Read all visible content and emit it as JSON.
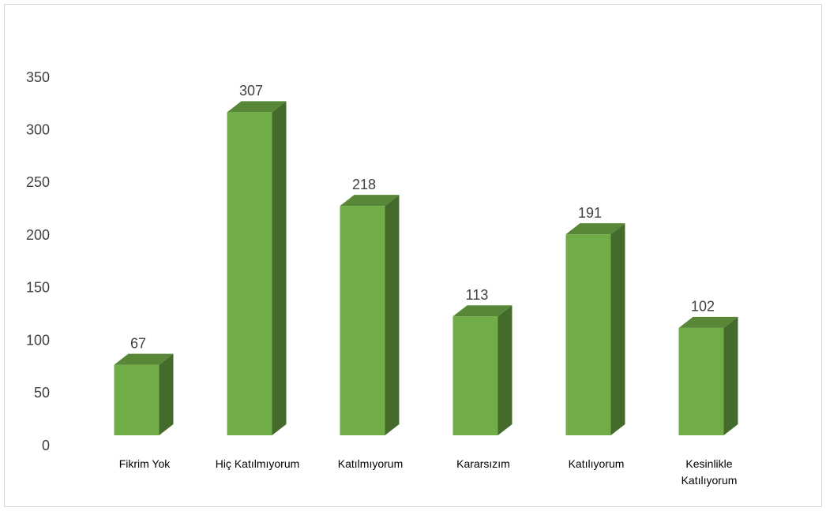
{
  "chart_data": {
    "type": "bar3d",
    "categories": [
      "Fikrim Yok",
      "Hiç Katılmıyorum",
      "Katılmıyorum",
      "Kararsızım",
      "Katılıyorum",
      "Kesinlikle Katılıyorum"
    ],
    "values": [
      67,
      307,
      218,
      113,
      191,
      102
    ],
    "color": "#70ad47",
    "ylim": [
      0,
      350
    ],
    "yticks": [
      0,
      50,
      100,
      150,
      200,
      250,
      300,
      350
    ]
  }
}
